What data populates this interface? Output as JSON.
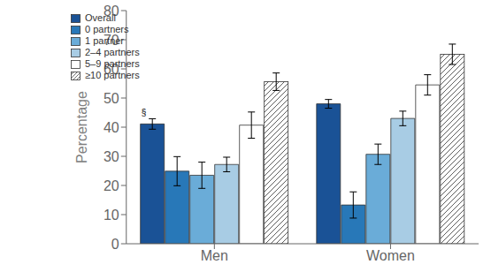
{
  "chart_data": {
    "type": "bar",
    "categories": [
      "Men",
      "Women"
    ],
    "series": [
      {
        "name": "Overall",
        "color": "#1a5296",
        "values": [
          41.1,
          48.0
        ],
        "errors": [
          1.8,
          1.5
        ]
      },
      {
        "name": "0 partners",
        "color": "#2878b8",
        "values": [
          24.9,
          13.3
        ],
        "errors": [
          5.0,
          4.5
        ]
      },
      {
        "name": "1 partner",
        "color": "#6aacd8",
        "values": [
          23.5,
          30.7
        ],
        "errors": [
          4.5,
          3.5
        ]
      },
      {
        "name": "2–4 partners",
        "color": "#a8cce4",
        "values": [
          27.2,
          43.0
        ],
        "errors": [
          2.5,
          2.5
        ]
      },
      {
        "name": "5–9 partners",
        "color": "#ffffff",
        "values": [
          40.7,
          54.5
        ],
        "errors": [
          4.5,
          3.5
        ]
      },
      {
        "name": "≥10 partners",
        "color": "#ffffff",
        "values": [
          55.6,
          65.0
        ],
        "errors": [
          3.0,
          3.5
        ]
      }
    ],
    "ylabel": "Percentage",
    "ylim": [
      0,
      80
    ],
    "yticks": [
      0,
      10,
      20,
      30,
      40,
      50,
      60,
      70,
      80
    ],
    "annotations": [
      {
        "text": "§",
        "category": "Men",
        "series": "Overall"
      }
    ],
    "legend": "upper left",
    "grid": false
  }
}
